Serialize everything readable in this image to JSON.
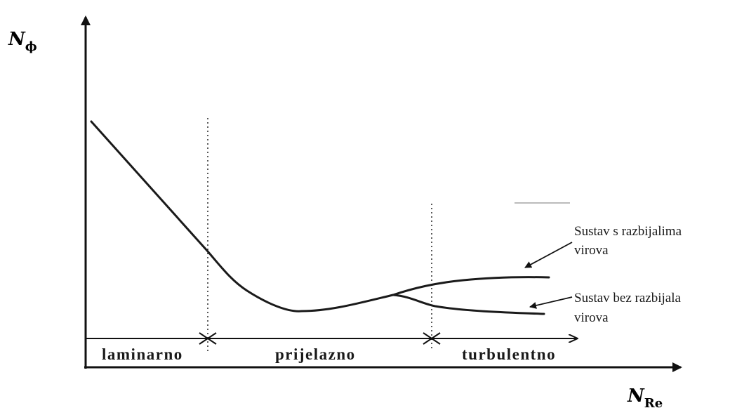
{
  "axes": {
    "y_label": {
      "main": "N",
      "sub": "ϕ"
    },
    "x_label": {
      "main": "N",
      "sub": "Re"
    }
  },
  "regimes": [
    {
      "label": "laminarno"
    },
    {
      "label": "prijelazno"
    },
    {
      "label": "turbulentno"
    }
  ],
  "annotations": [
    {
      "line1": "Sustav s razbijalima",
      "line2": "virova"
    },
    {
      "line1": "Sustav bez razbijala",
      "line2": "virova"
    }
  ],
  "colors": {
    "ink": "#1a1a1a"
  }
}
